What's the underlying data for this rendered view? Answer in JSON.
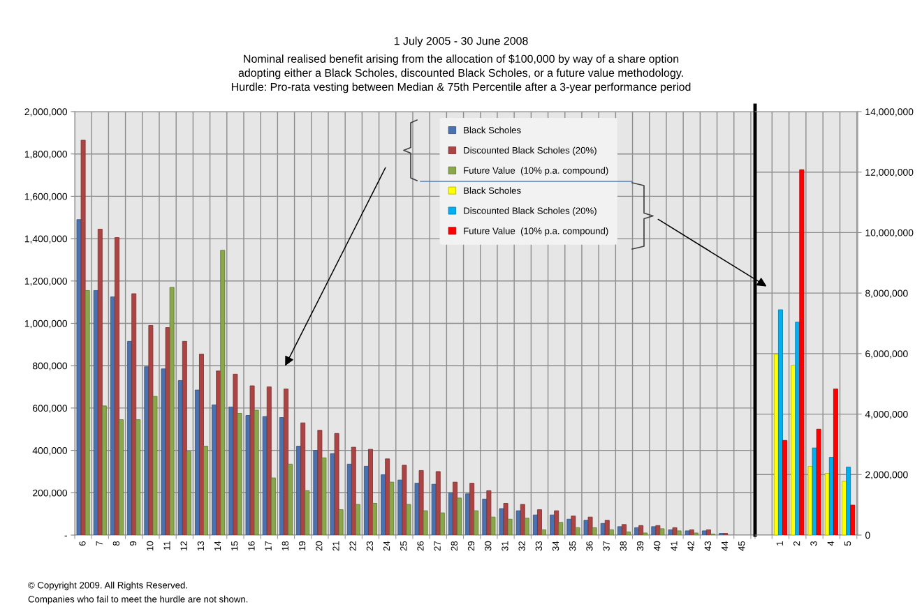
{
  "chart_data": [
    {
      "type": "bar",
      "title": "1 July 2005 - 30 June 2008",
      "subtitle": "Nominal realised benefit arising from the allocation of $100,000 by way of a share option\nadopting either a Black Scholes, discounted Black Scholes, or a future value methodology.\nHurdle: Pro-rata vesting between Median & 75th Percentile after a 3-year performance period",
      "annotations": [
        "© Copyright 2009. All Rights Reserved.",
        "Companies who fail to meet the hurdle are not shown."
      ],
      "categories": [
        "6",
        "7",
        "8",
        "9",
        "10",
        "11",
        "12",
        "13",
        "14",
        "15",
        "16",
        "17",
        "18",
        "19",
        "20",
        "21",
        "22",
        "23",
        "24",
        "25",
        "26",
        "27",
        "28",
        "29",
        "30",
        "31",
        "32",
        "33",
        "34",
        "35",
        "36",
        "37",
        "38",
        "39",
        "40",
        "41",
        "42",
        "43",
        "44",
        "45"
      ],
      "series": [
        {
          "name": "Black Scholes",
          "color": "#4a72b0",
          "values": [
            1490000,
            1155000,
            1125000,
            915000,
            795000,
            785000,
            730000,
            685000,
            615000,
            605000,
            565000,
            560000,
            555000,
            420000,
            400000,
            385000,
            335000,
            325000,
            285000,
            260000,
            245000,
            240000,
            200000,
            195000,
            170000,
            125000,
            115000,
            95000,
            95000,
            75000,
            70000,
            55000,
            40000,
            35000,
            40000,
            25000,
            20000,
            20000,
            8000,
            null
          ]
        },
        {
          "name": "Discounted Black Scholes (20%)",
          "color": "#ac4444",
          "values": [
            1865000,
            1445000,
            1405000,
            1140000,
            990000,
            980000,
            915000,
            855000,
            775000,
            760000,
            705000,
            700000,
            690000,
            530000,
            495000,
            480000,
            415000,
            405000,
            360000,
            330000,
            305000,
            300000,
            250000,
            245000,
            210000,
            150000,
            145000,
            120000,
            115000,
            90000,
            85000,
            70000,
            50000,
            45000,
            45000,
            35000,
            25000,
            25000,
            8000,
            null
          ]
        },
        {
          "name": "Future Value  (10% p.a. compound)",
          "color": "#8aa84b",
          "values": [
            1155000,
            610000,
            545000,
            545000,
            655000,
            1170000,
            395000,
            420000,
            1345000,
            575000,
            590000,
            270000,
            335000,
            210000,
            365000,
            120000,
            145000,
            150000,
            250000,
            145000,
            115000,
            105000,
            175000,
            115000,
            85000,
            75000,
            80000,
            25000,
            60000,
            35000,
            35000,
            25000,
            15000,
            10000,
            30000,
            20000,
            10000,
            5000,
            null,
            null
          ]
        }
      ],
      "ylim": [
        0,
        2000000
      ],
      "yticks": [
        {
          "value": 0,
          "label": "-"
        },
        {
          "value": 200000,
          "label": "200,000"
        },
        {
          "value": 400000,
          "label": "400,000"
        },
        {
          "value": 600000,
          "label": "600,000"
        },
        {
          "value": 800000,
          "label": "800,000"
        },
        {
          "value": 1000000,
          "label": "1,000,000"
        },
        {
          "value": 1200000,
          "label": "1,200,000"
        },
        {
          "value": 1400000,
          "label": "1,400,000"
        },
        {
          "value": 1600000,
          "label": "1,600,000"
        },
        {
          "value": 1800000,
          "label": "1,800,000"
        },
        {
          "value": 2000000,
          "label": "2,000,000"
        }
      ],
      "grid": true,
      "legend": "top"
    },
    {
      "type": "bar",
      "categories": [
        "1",
        "2",
        "3",
        "4",
        "5"
      ],
      "series": [
        {
          "name": "Black Scholes",
          "color": "#ffff00",
          "axis": "y2",
          "values": [
            5980000,
            5610000,
            2270000,
            2040000,
            1780000
          ]
        },
        {
          "name": "Discounted Black Scholes (20%)",
          "color": "#00b0f0",
          "axis": "y2",
          "values": [
            7450000,
            7040000,
            2880000,
            2570000,
            2250000
          ]
        },
        {
          "name": "Future Value  (10% p.a. compound)",
          "color": "#ff0000",
          "axis": "y2",
          "values": [
            3130000,
            12080000,
            3500000,
            4830000,
            990000
          ]
        }
      ],
      "y2lim": [
        0,
        14000000
      ],
      "y2ticks": [
        0,
        {
          "value": 2000000,
          "label": "2,000,000"
        },
        {
          "value": 4000000,
          "label": "4,000,000"
        },
        {
          "value": 6000000,
          "label": "6,000,000"
        },
        {
          "value": 8000000,
          "label": "8,000,000"
        },
        {
          "value": 10000000,
          "label": "10,000,000"
        },
        {
          "value": 12000000,
          "label": "12,000,000"
        },
        {
          "value": 14000000,
          "label": "14,000,000"
        }
      ],
      "grid": true,
      "legend": "top"
    }
  ]
}
